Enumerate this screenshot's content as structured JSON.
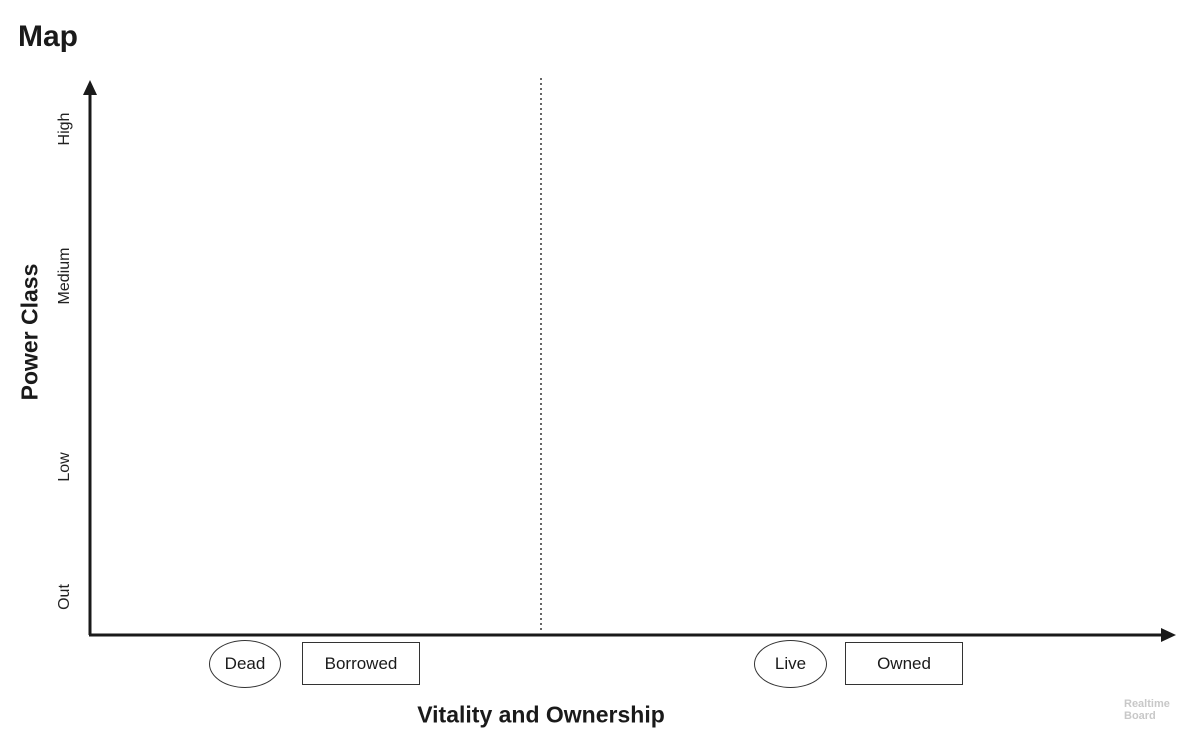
{
  "title": "Map",
  "y_axis": {
    "label": "Power Class",
    "ticks": [
      "High",
      "Medium",
      "Low",
      "Out"
    ]
  },
  "x_axis": {
    "label": "Vitality and Ownership",
    "left_group": {
      "vitality": "Dead",
      "ownership": "Borrowed"
    },
    "right_group": {
      "vitality": "Live",
      "ownership": "Owned"
    }
  },
  "watermark": {
    "line1": "Realtime",
    "line2": "Board"
  },
  "colors": {
    "ink": "#1a1a1a",
    "watermark": "#c8c8c8"
  }
}
